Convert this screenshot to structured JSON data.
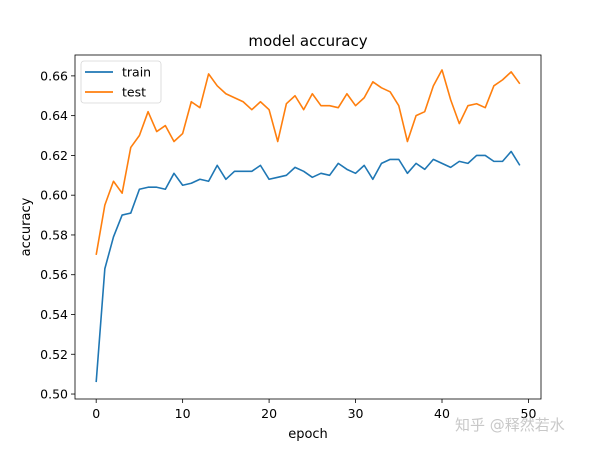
{
  "watermark": "知乎 @释然若水",
  "chart_data": {
    "type": "line",
    "title": "model accuracy",
    "xlabel": "epoch",
    "ylabel": "accuracy",
    "xlim": [
      -2.45,
      51.45
    ],
    "ylim": [
      0.4975,
      0.6705
    ],
    "xticks": [
      0,
      10,
      20,
      30,
      40,
      50
    ],
    "yticks": [
      0.5,
      0.52,
      0.54,
      0.56,
      0.58,
      0.6,
      0.62,
      0.64,
      0.66
    ],
    "legend_position": "upper left",
    "grid": false,
    "x": [
      0,
      1,
      2,
      3,
      4,
      5,
      6,
      7,
      8,
      9,
      10,
      11,
      12,
      13,
      14,
      15,
      16,
      17,
      18,
      19,
      20,
      21,
      22,
      23,
      24,
      25,
      26,
      27,
      28,
      29,
      30,
      31,
      32,
      33,
      34,
      35,
      36,
      37,
      38,
      39,
      40,
      41,
      42,
      43,
      44,
      45,
      46,
      47,
      48,
      49
    ],
    "series": [
      {
        "name": "train",
        "color": "#1f77b4",
        "values": [
          0.506,
          0.563,
          0.579,
          0.59,
          0.591,
          0.603,
          0.604,
          0.604,
          0.603,
          0.611,
          0.605,
          0.606,
          0.608,
          0.607,
          0.615,
          0.608,
          0.612,
          0.612,
          0.612,
          0.615,
          0.608,
          0.609,
          0.61,
          0.614,
          0.612,
          0.609,
          0.611,
          0.61,
          0.616,
          0.613,
          0.611,
          0.615,
          0.608,
          0.616,
          0.618,
          0.618,
          0.611,
          0.616,
          0.613,
          0.618,
          0.616,
          0.614,
          0.617,
          0.616,
          0.62,
          0.62,
          0.617,
          0.617,
          0.622,
          0.615
        ]
      },
      {
        "name": "test",
        "color": "#ff7f0e",
        "values": [
          0.57,
          0.595,
          0.607,
          0.601,
          0.624,
          0.63,
          0.642,
          0.632,
          0.635,
          0.627,
          0.631,
          0.647,
          0.644,
          0.661,
          0.655,
          0.651,
          0.649,
          0.647,
          0.643,
          0.647,
          0.643,
          0.627,
          0.646,
          0.65,
          0.643,
          0.651,
          0.645,
          0.645,
          0.644,
          0.651,
          0.645,
          0.649,
          0.657,
          0.654,
          0.652,
          0.645,
          0.627,
          0.64,
          0.642,
          0.655,
          0.663,
          0.648,
          0.636,
          0.645,
          0.646,
          0.644,
          0.655,
          0.658,
          0.662,
          0.656
        ]
      }
    ]
  }
}
